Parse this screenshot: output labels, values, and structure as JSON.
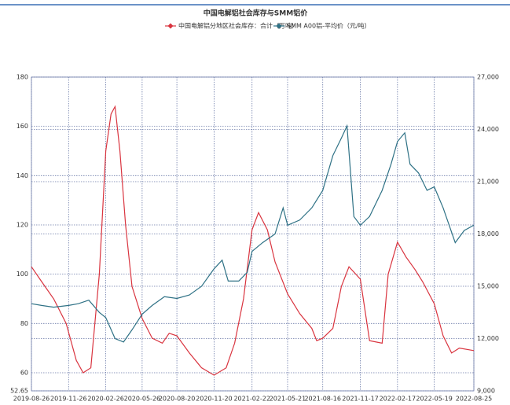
{
  "chart_data": {
    "type": "line",
    "title": "中国电解铝社会库存与SMM铝价",
    "xlim": [
      "2019-08-26",
      "2022-08-25"
    ],
    "xticks": [
      "2019-08-26",
      "2019-11-26",
      "2020-02-26",
      "2020-05-26",
      "2020-08-20",
      "2020-11-20",
      "2021-02-22",
      "2021-05-21",
      "2021-08-16",
      "2021-11-17",
      "2022-02-17",
      "2022-05-19",
      "2022-08-25"
    ],
    "ylim": [
      52.65,
      180
    ],
    "yticks": [
      52.65,
      60,
      80,
      100,
      120,
      140,
      160,
      180
    ],
    "y2lim": [
      9000,
      27000
    ],
    "y2ticks": [
      {
        "value": 9000,
        "label": "9,000"
      },
      {
        "value": 12000,
        "label": "12,000"
      },
      {
        "value": 15000,
        "label": "15,000"
      },
      {
        "value": 18000,
        "label": "18,000"
      },
      {
        "value": 21000,
        "label": "21,000"
      },
      {
        "value": 24000,
        "label": "24,000"
      },
      {
        "value": 27000,
        "label": "27,000"
      }
    ],
    "grid": true,
    "legend": "top",
    "series": [
      {
        "name": "中国电解铝分地区社会库存：合计（万吨）",
        "color": "#d9343f",
        "axis": "y",
        "x": [
          "2019-08-26",
          "2019-09-20",
          "2019-10-20",
          "2019-11-20",
          "2019-12-15",
          "2020-01-01",
          "2020-01-20",
          "2020-02-10",
          "2020-02-26",
          "2020-03-10",
          "2020-03-20",
          "2020-04-01",
          "2020-04-15",
          "2020-05-01",
          "2020-05-26",
          "2020-06-20",
          "2020-07-15",
          "2020-08-01",
          "2020-08-20",
          "2020-09-20",
          "2020-10-20",
          "2020-11-20",
          "2020-12-20",
          "2021-01-10",
          "2021-02-01",
          "2021-02-22",
          "2021-03-10",
          "2021-04-01",
          "2021-04-20",
          "2021-05-21",
          "2021-06-20",
          "2021-07-20",
          "2021-08-01",
          "2021-08-16",
          "2021-09-10",
          "2021-10-01",
          "2021-10-20",
          "2021-11-17",
          "2021-12-10",
          "2022-01-10",
          "2022-01-25",
          "2022-02-17",
          "2022-03-10",
          "2022-04-01",
          "2022-04-20",
          "2022-05-19",
          "2022-06-10",
          "2022-07-01",
          "2022-07-20",
          "2022-08-25"
        ],
        "values": [
          103,
          97,
          90,
          80,
          65,
          60,
          62,
          100,
          150,
          165,
          168,
          150,
          120,
          95,
          82,
          74,
          72,
          76,
          75,
          68,
          62,
          59,
          62,
          72,
          90,
          118,
          125,
          118,
          105,
          92,
          84,
          78,
          73,
          74,
          78,
          95,
          103,
          98,
          73,
          72,
          100,
          113,
          107,
          102,
          97,
          88,
          75,
          68,
          70,
          69
        ]
      },
      {
        "name": "SMM A00铝-平均价（元/吨）",
        "color": "#2e7185",
        "axis": "y2",
        "x": [
          "2019-08-26",
          "2019-09-20",
          "2019-10-20",
          "2019-11-26",
          "2019-12-20",
          "2020-01-15",
          "2020-02-10",
          "2020-02-26",
          "2020-03-20",
          "2020-04-10",
          "2020-05-01",
          "2020-05-26",
          "2020-06-20",
          "2020-07-20",
          "2020-08-20",
          "2020-09-20",
          "2020-10-20",
          "2020-11-20",
          "2020-12-10",
          "2020-12-25",
          "2021-01-20",
          "2021-02-10",
          "2021-02-22",
          "2021-03-20",
          "2021-04-20",
          "2021-05-10",
          "2021-05-21",
          "2021-06-20",
          "2021-07-20",
          "2021-08-16",
          "2021-09-10",
          "2021-10-01",
          "2021-10-15",
          "2021-11-01",
          "2021-11-17",
          "2021-12-10",
          "2022-01-10",
          "2022-02-01",
          "2022-02-17",
          "2022-03-07",
          "2022-03-20",
          "2022-04-10",
          "2022-05-01",
          "2022-05-19",
          "2022-06-10",
          "2022-07-10",
          "2022-08-01",
          "2022-08-25"
        ],
        "values": [
          14000,
          13900,
          13800,
          13900,
          14000,
          14200,
          13500,
          13200,
          12000,
          11800,
          12500,
          13400,
          13900,
          14400,
          14300,
          14500,
          15000,
          16000,
          16500,
          15300,
          15300,
          15800,
          17000,
          17500,
          18000,
          19500,
          18500,
          18800,
          19500,
          20500,
          22500,
          23500,
          24200,
          19000,
          18500,
          19000,
          20500,
          22000,
          23300,
          23800,
          22000,
          21500,
          20500,
          20700,
          19500,
          17500,
          18200,
          18500
        ]
      }
    ]
  }
}
